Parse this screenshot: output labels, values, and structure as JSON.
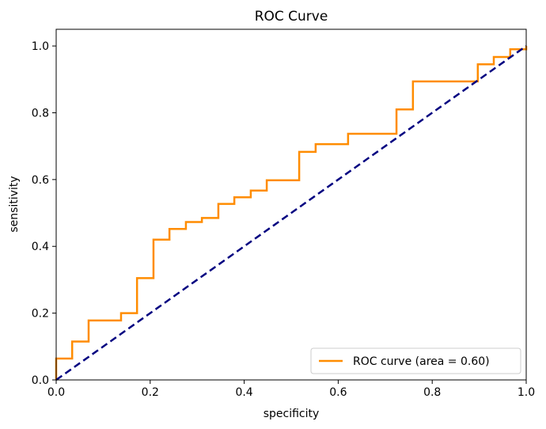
{
  "chart_data": {
    "type": "line",
    "title": "ROC Curve",
    "xlabel": "specificity",
    "ylabel": "sensitivity",
    "xlim": [
      0.0,
      1.0
    ],
    "ylim": [
      0.0,
      1.05
    ],
    "xticks": [
      "0.0",
      "0.2",
      "0.4",
      "0.6",
      "0.8",
      "1.0"
    ],
    "yticks": [
      "0.0",
      "0.2",
      "0.4",
      "0.6",
      "0.8",
      "1.0"
    ],
    "grid": false,
    "legend_position": "lower-right",
    "series": [
      {
        "name": "ROC curve (area = 0.60)",
        "color": "#ff8c00",
        "style": "solid",
        "x": [
          0.0,
          0.0,
          0.034,
          0.034,
          0.069,
          0.069,
          0.138,
          0.138,
          0.172,
          0.172,
          0.207,
          0.207,
          0.241,
          0.241,
          0.276,
          0.276,
          0.31,
          0.31,
          0.345,
          0.345,
          0.379,
          0.379,
          0.414,
          0.414,
          0.448,
          0.448,
          0.517,
          0.517,
          0.552,
          0.552,
          0.621,
          0.621,
          0.724,
          0.724,
          0.759,
          0.759,
          0.897,
          0.897,
          0.931,
          0.931,
          0.966,
          0.966,
          1.0,
          1.0
        ],
        "y": [
          0.0,
          0.064,
          0.064,
          0.115,
          0.115,
          0.178,
          0.178,
          0.2,
          0.2,
          0.305,
          0.305,
          0.42,
          0.42,
          0.452,
          0.452,
          0.473,
          0.473,
          0.485,
          0.485,
          0.527,
          0.527,
          0.547,
          0.547,
          0.567,
          0.567,
          0.598,
          0.598,
          0.683,
          0.683,
          0.706,
          0.706,
          0.737,
          0.737,
          0.81,
          0.81,
          0.894,
          0.894,
          0.945,
          0.945,
          0.967,
          0.967,
          0.99,
          0.99,
          1.0
        ]
      },
      {
        "name": "",
        "color": "#000080",
        "style": "dashed",
        "x": [
          0.0,
          1.0
        ],
        "y": [
          0.0,
          1.0
        ]
      }
    ]
  }
}
